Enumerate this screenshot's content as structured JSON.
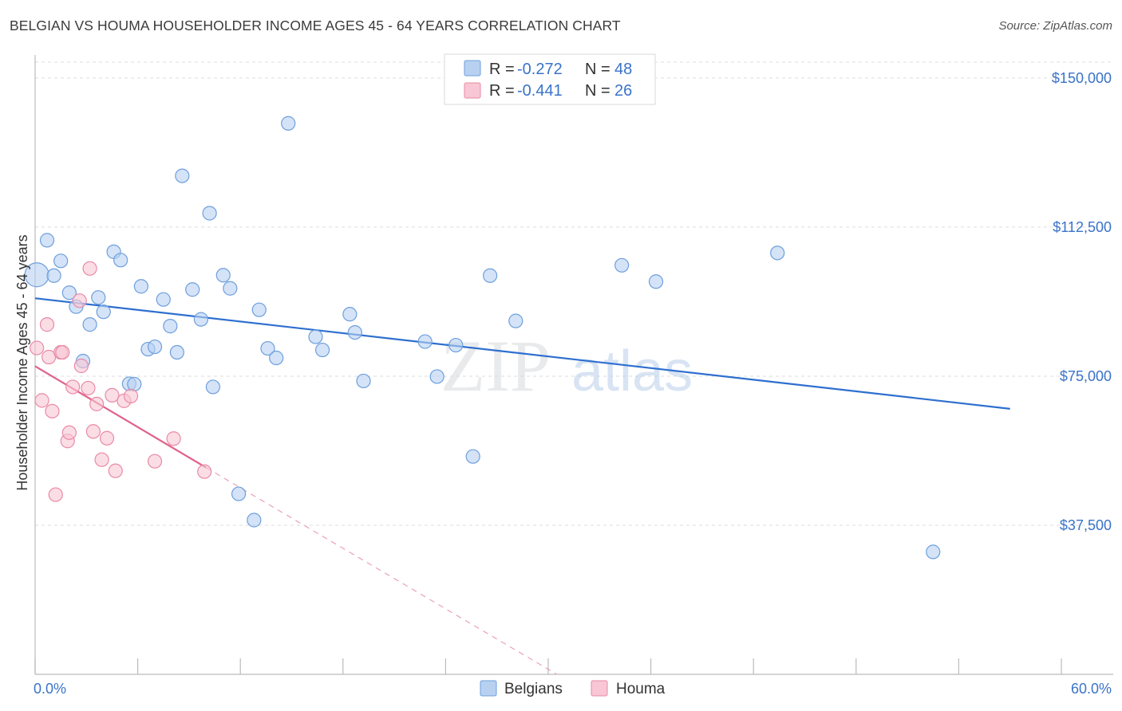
{
  "chart_data": {
    "type": "scatter",
    "title": "BELGIAN VS HOUMA HOUSEHOLDER INCOME AGES 45 - 64 YEARS CORRELATION CHART",
    "source": "Source: ZipAtlas.com",
    "xlabel": "",
    "ylabel": "Householder Income Ages 45 - 64 years",
    "xlim": [
      0,
      60
    ],
    "ylim": [
      0,
      157000
    ],
    "x_tick_labels": [
      {
        "value": 0,
        "label": "0.0%"
      },
      {
        "value": 60,
        "label": "60.0%"
      }
    ],
    "y_ticks": [
      {
        "value": 37500,
        "label": "$37,500"
      },
      {
        "value": 75000,
        "label": "$75,000"
      },
      {
        "value": 112500,
        "label": "$112,500"
      },
      {
        "value": 150000,
        "label": "$150,000"
      }
    ],
    "watermark": {
      "zip": "ZIP",
      "atlas": "atlas"
    },
    "legend_stats": [
      {
        "series": "Belgians",
        "r_label": "R = ",
        "r_value": "-0.272",
        "n_label": "N = ",
        "n_value": "48"
      },
      {
        "series": "Houma",
        "r_label": "R = ",
        "r_value": "-0.441",
        "n_label": "N = ",
        "n_value": "26"
      }
    ],
    "series": [
      {
        "name": "Belgians",
        "color": "#6e9fdc",
        "fill": "#b8d1f1",
        "trend": {
          "x0": 0,
          "y0": 94600,
          "x1": 57,
          "y1": 66800,
          "color": "#2e6fcf"
        },
        "points": [
          [
            0.1,
            100500,
            "large"
          ],
          [
            0.7,
            109200
          ],
          [
            1.5,
            104000
          ],
          [
            1.1,
            100300
          ],
          [
            2.0,
            96000
          ],
          [
            2.4,
            92500
          ],
          [
            3.2,
            88000
          ],
          [
            2.8,
            78800
          ],
          [
            3.7,
            94800
          ],
          [
            4.0,
            91200
          ],
          [
            4.6,
            106300
          ],
          [
            5.0,
            104200
          ],
          [
            5.5,
            73100
          ],
          [
            5.8,
            73000
          ],
          [
            6.2,
            97600
          ],
          [
            6.6,
            81800
          ],
          [
            7.0,
            82400
          ],
          [
            7.5,
            94300
          ],
          [
            7.9,
            87600
          ],
          [
            8.3,
            81000
          ],
          [
            8.6,
            125400
          ],
          [
            9.2,
            96800
          ],
          [
            9.7,
            89300
          ],
          [
            10.2,
            116000
          ],
          [
            10.4,
            72300
          ],
          [
            11.0,
            100400
          ],
          [
            11.4,
            97100
          ],
          [
            11.9,
            45400
          ],
          [
            12.8,
            38800
          ],
          [
            13.1,
            91700
          ],
          [
            13.6,
            82000
          ],
          [
            14.1,
            79600
          ],
          [
            14.8,
            138600
          ],
          [
            16.4,
            84900
          ],
          [
            16.8,
            81600
          ],
          [
            18.4,
            90600
          ],
          [
            18.7,
            86000
          ],
          [
            19.2,
            73800
          ],
          [
            22.8,
            83700
          ],
          [
            23.5,
            74900
          ],
          [
            24.6,
            82800
          ],
          [
            25.6,
            54800
          ],
          [
            26.6,
            100300
          ],
          [
            28.1,
            88900
          ],
          [
            34.3,
            102900
          ],
          [
            36.3,
            98800
          ],
          [
            43.4,
            106000
          ],
          [
            52.5,
            30800
          ]
        ]
      },
      {
        "name": "Houma",
        "color": "#e98aa6",
        "fill": "#f8c6d4",
        "trend": {
          "x0": 0,
          "y0": 77500,
          "x1": 10,
          "y1": 52000,
          "color": "#e0628a"
        },
        "trend_extension": {
          "x0": 10,
          "y0": 52000,
          "x1": 30.5,
          "y1": 0,
          "color": "#e9a1b7"
        },
        "points": [
          [
            0.1,
            82100
          ],
          [
            0.4,
            68900
          ],
          [
            0.7,
            88000
          ],
          [
            0.8,
            79800
          ],
          [
            1.0,
            66200
          ],
          [
            1.2,
            45200
          ],
          [
            1.5,
            81000
          ],
          [
            1.6,
            81000
          ],
          [
            1.9,
            58700
          ],
          [
            2.0,
            60800
          ],
          [
            2.2,
            72300
          ],
          [
            2.6,
            94000
          ],
          [
            2.7,
            77600
          ],
          [
            3.1,
            72000
          ],
          [
            3.2,
            102100
          ],
          [
            3.4,
            61100
          ],
          [
            3.6,
            68000
          ],
          [
            3.9,
            54000
          ],
          [
            4.2,
            59400
          ],
          [
            4.5,
            70200
          ],
          [
            4.7,
            51200
          ],
          [
            5.2,
            68800
          ],
          [
            5.6,
            70000
          ],
          [
            7.0,
            53600
          ],
          [
            8.1,
            59300
          ],
          [
            9.9,
            51000
          ]
        ]
      }
    ]
  }
}
